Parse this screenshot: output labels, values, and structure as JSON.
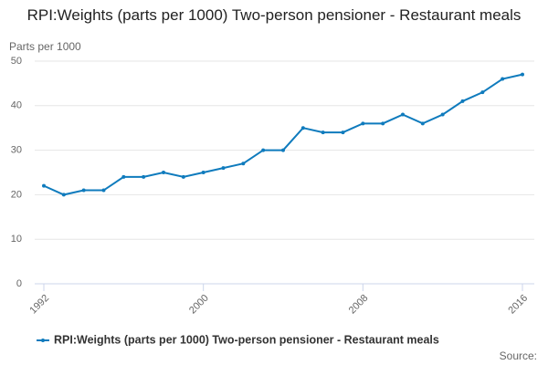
{
  "chart_data": {
    "type": "line",
    "title": "RPI:Weights (parts per 1000) Two-person pensioner - Restaurant meals",
    "y_label": "Parts per 1000",
    "source": "Source:",
    "x": [
      1992,
      1993,
      1994,
      1995,
      1996,
      1997,
      1998,
      1999,
      2000,
      2001,
      2002,
      2003,
      2004,
      2005,
      2006,
      2007,
      2008,
      2009,
      2010,
      2011,
      2012,
      2013,
      2014,
      2015,
      2016
    ],
    "series": [
      {
        "name": "RPI:Weights (parts per 1000) Two-person pensioner - Restaurant meals",
        "color": "#0f7bbd",
        "values": [
          22,
          20,
          21,
          21,
          24,
          24,
          25,
          24,
          25,
          26,
          27,
          30,
          30,
          35,
          34,
          34,
          36,
          36,
          38,
          36,
          38,
          41,
          43,
          46,
          47
        ]
      }
    ],
    "xlim": [
      1992,
      2016
    ],
    "xticks": [
      1992,
      2000,
      2008,
      2016
    ],
    "ylim": [
      0,
      50
    ],
    "yticks": [
      0,
      10,
      20,
      30,
      40,
      50
    ],
    "grid": true,
    "legend": "bottom"
  }
}
